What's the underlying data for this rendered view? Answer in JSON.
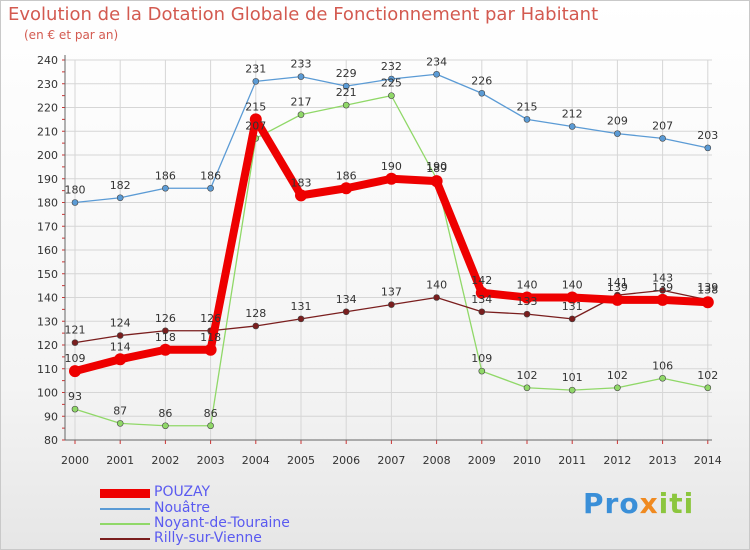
{
  "chart_data": {
    "type": "line",
    "title": "Evolution de la Dotation Globale de Fonctionnement par Habitant",
    "subtitle": "(en € et par an)",
    "xlabel": "",
    "ylabel": "",
    "x": [
      "2000",
      "2001",
      "2002",
      "2003",
      "2004",
      "2005",
      "2006",
      "2007",
      "2008",
      "2009",
      "2010",
      "2011",
      "2012",
      "2013",
      "2014"
    ],
    "ylim": [
      80,
      240
    ],
    "yticks": [
      "80",
      "90",
      "100",
      "110",
      "120",
      "130",
      "140",
      "150",
      "160",
      "170",
      "180",
      "190",
      "200",
      "210",
      "220",
      "230",
      "240"
    ],
    "grid": true,
    "series": [
      {
        "name": "POUZAY",
        "color": "#ee0000",
        "values": [
          109,
          114,
          118,
          118,
          215,
          183,
          186,
          190,
          189,
          142,
          140,
          140,
          139,
          139,
          138
        ],
        "labels": [
          "109",
          "114",
          "118",
          "118",
          "215",
          "183",
          "186",
          "190",
          "189",
          "142",
          "140",
          "140",
          "139",
          "139",
          "138"
        ]
      },
      {
        "name": "Nouâtre",
        "color": "#5b9bd5",
        "values": [
          180,
          182,
          186,
          186,
          231,
          233,
          229,
          232,
          234,
          226,
          215,
          212,
          209,
          207,
          203
        ],
        "labels": [
          "180",
          "182",
          "186",
          "186",
          "231",
          "233",
          "229",
          "232",
          "234",
          "226",
          "215",
          "212",
          "209",
          "207",
          "203"
        ]
      },
      {
        "name": "Noyant-de-Touraine",
        "color": "#90d868",
        "values": [
          93,
          87,
          86,
          86,
          207,
          217,
          221,
          225,
          190,
          109,
          102,
          101,
          102,
          106,
          102
        ],
        "labels": [
          "93",
          "87",
          "86",
          "86",
          "207",
          "217",
          "221",
          "225",
          "190",
          "109",
          "102",
          "101",
          "102",
          "106",
          "102"
        ]
      },
      {
        "name": "Rilly-sur-Vienne",
        "color": "#7a1e1e",
        "values": [
          121,
          124,
          126,
          126,
          128,
          131,
          134,
          137,
          140,
          134,
          133,
          131,
          141,
          143,
          139
        ],
        "labels": [
          "121",
          "124",
          "126",
          "126",
          "128",
          "131",
          "134",
          "137",
          "140",
          "134",
          "133",
          "131",
          "141",
          "143",
          "139"
        ]
      }
    ]
  },
  "legend": {
    "items": [
      "POUZAY",
      "Nouâtre",
      "Noyant-de-Touraine",
      "Rilly-sur-Vienne"
    ]
  },
  "logo": {
    "p1": "Pro",
    "p2": "x",
    "p3": "iti"
  }
}
